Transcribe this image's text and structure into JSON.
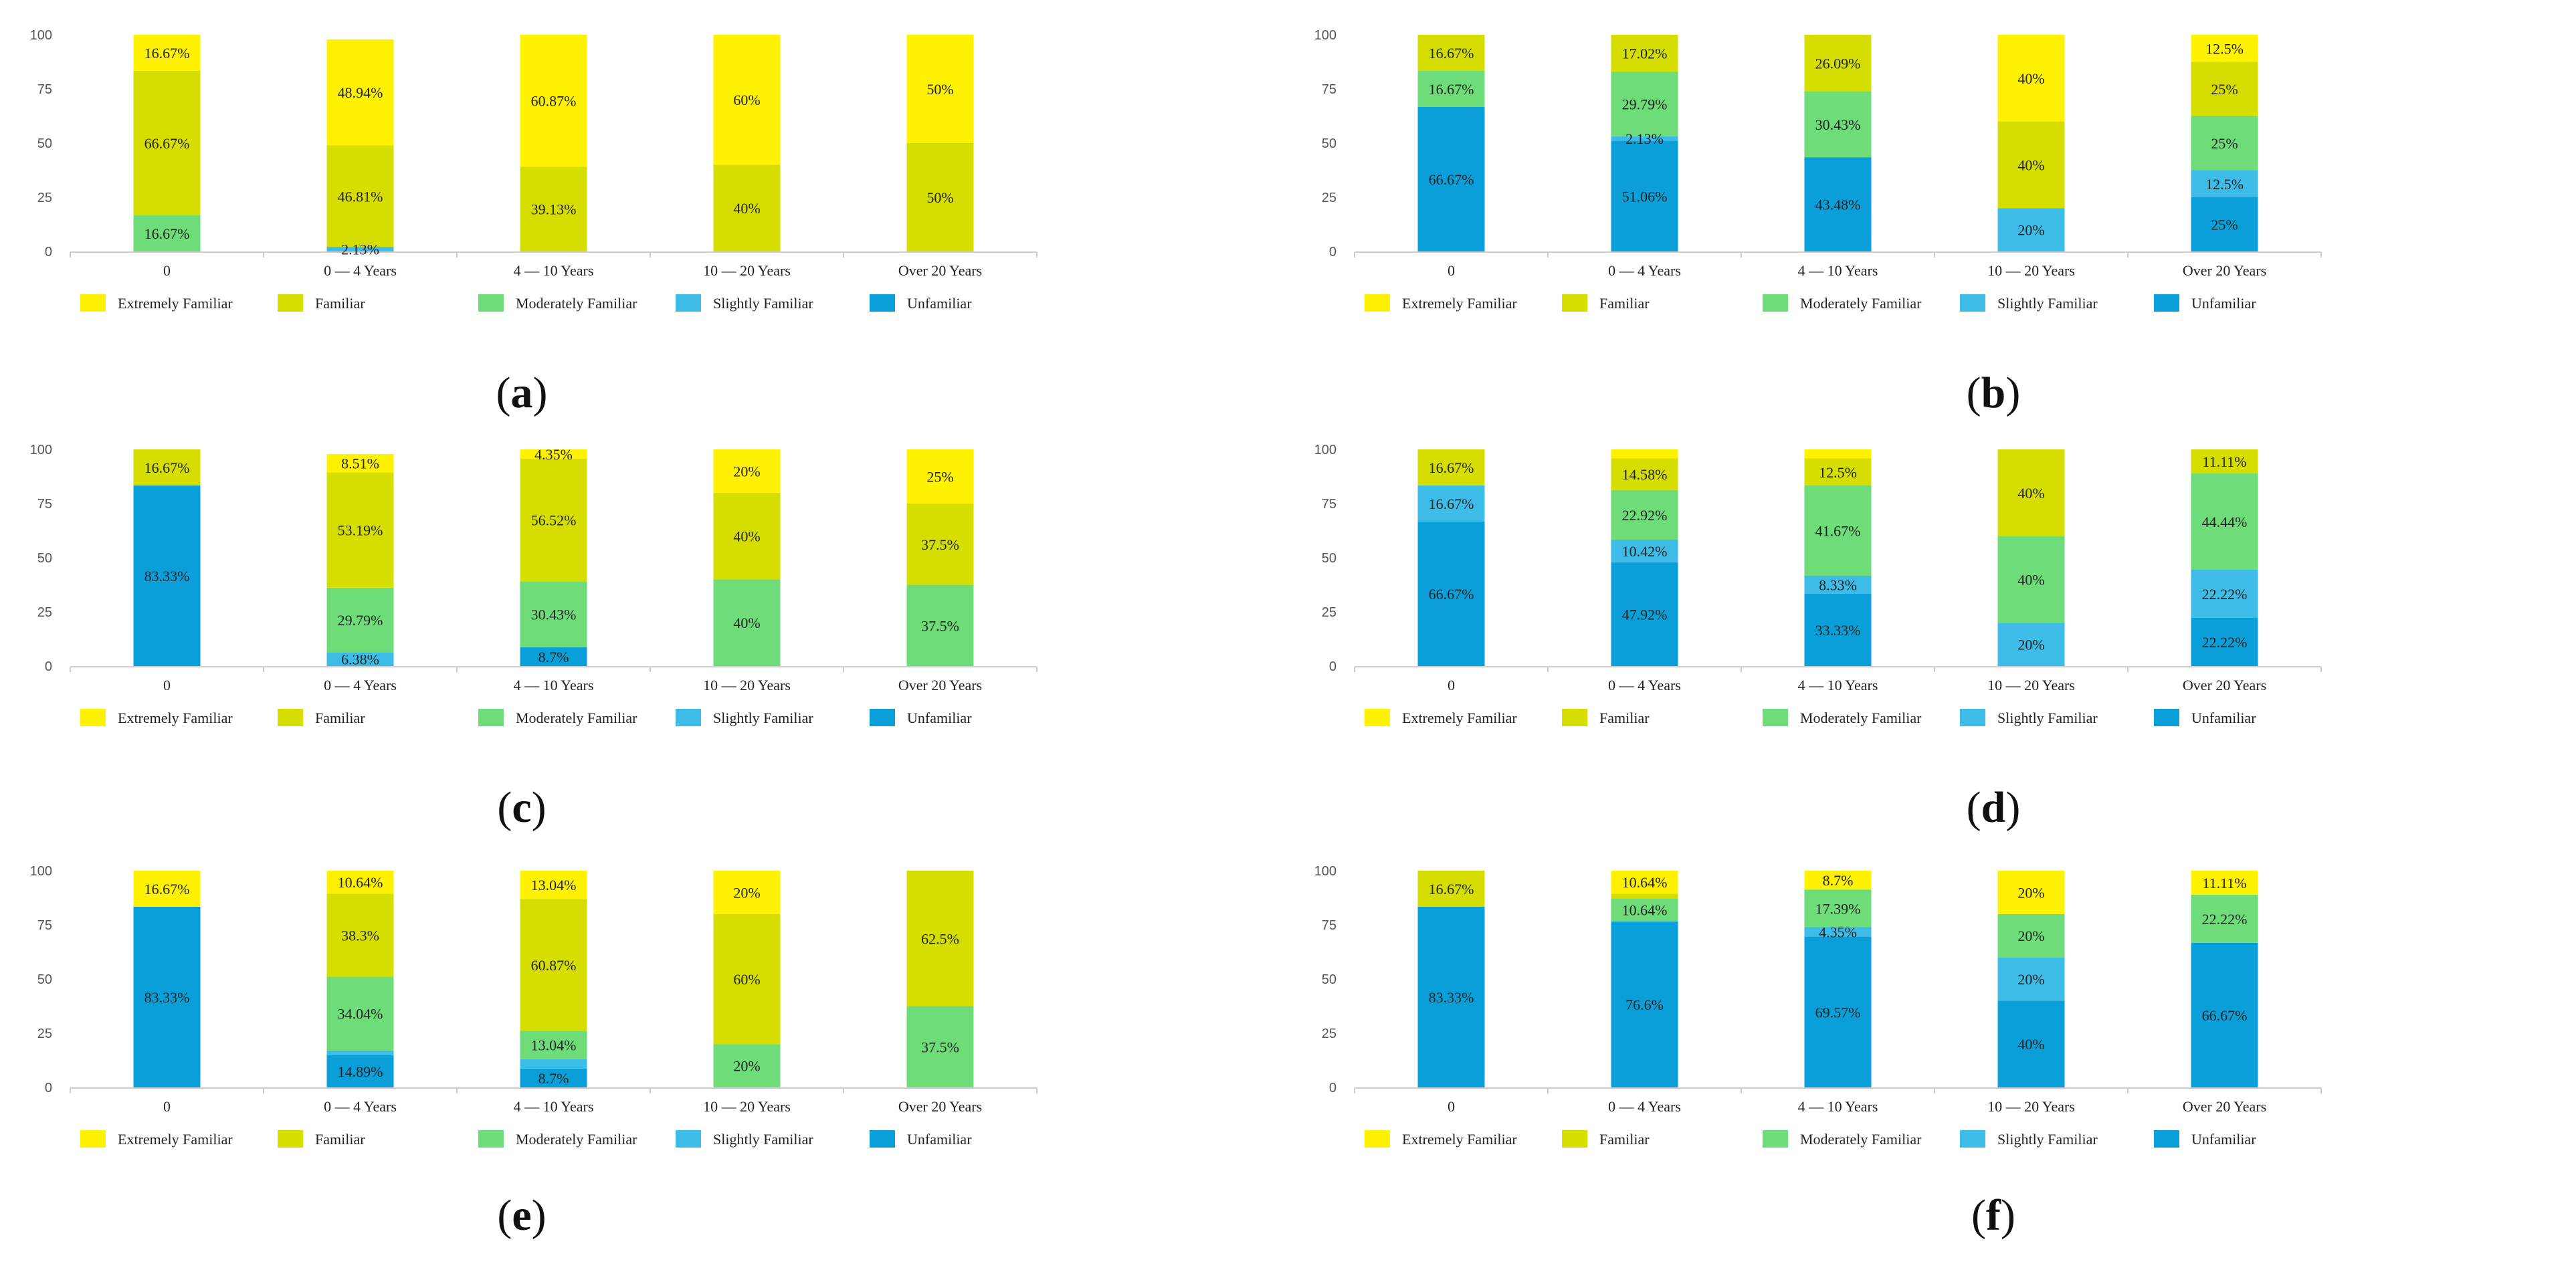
{
  "figure": {
    "legend": [
      "Extremely Familiar",
      "Familiar",
      "Moderately Familiar",
      "Slightly Familiar",
      "Unfamiliar"
    ],
    "colors": {
      "Extremely Familiar": "#FFF200",
      "Familiar": "#D6DE00",
      "Moderately Familiar": "#6EDC78",
      "Slightly Familiar": "#3DBCE8",
      "Unfamiliar": "#0A9FD8"
    }
  },
  "chart_data": [
    {
      "panel": "a",
      "type": "stacked-bar",
      "categories": [
        "0",
        "0 — 4 Years",
        "4 — 10 Years",
        "10 — 20 Years",
        "Over 20 Years"
      ],
      "yticks": [
        "0",
        "25",
        "50",
        "75",
        "100"
      ],
      "ylim": [
        0,
        100
      ],
      "legend_position": "bottom",
      "series": [
        {
          "name": "Unfamiliar",
          "values": [
            0,
            0,
            0,
            0,
            0
          ]
        },
        {
          "name": "Slightly Familiar",
          "values": [
            0,
            2.13,
            0,
            0,
            0
          ]
        },
        {
          "name": "Moderately Familiar",
          "values": [
            16.67,
            0,
            0,
            0,
            0
          ]
        },
        {
          "name": "Familiar",
          "values": [
            66.67,
            46.81,
            39.13,
            40,
            50
          ]
        },
        {
          "name": "Extremely Familiar",
          "values": [
            16.67,
            48.94,
            60.87,
            60,
            50
          ]
        }
      ],
      "labels": [
        {
          "series": "Moderately Familiar",
          "cat": 0,
          "text": "16.67%"
        },
        {
          "series": "Familiar",
          "cat": 0,
          "text": "66.67%"
        },
        {
          "series": "Extremely Familiar",
          "cat": 0,
          "text": "16.67%"
        },
        {
          "series": "Slightly Familiar",
          "cat": 1,
          "text": "2.13%"
        },
        {
          "series": "Familiar",
          "cat": 1,
          "text": "46.81%"
        },
        {
          "series": "Extremely Familiar",
          "cat": 1,
          "text": "48.94%"
        },
        {
          "series": "Familiar",
          "cat": 2,
          "text": "39.13%"
        },
        {
          "series": "Extremely Familiar",
          "cat": 2,
          "text": "60.87%"
        },
        {
          "series": "Familiar",
          "cat": 3,
          "text": "40%"
        },
        {
          "series": "Extremely Familiar",
          "cat": 3,
          "text": "60%"
        },
        {
          "series": "Familiar",
          "cat": 4,
          "text": "50%"
        },
        {
          "series": "Extremely Familiar",
          "cat": 4,
          "text": "50%"
        }
      ]
    },
    {
      "panel": "b",
      "type": "stacked-bar",
      "categories": [
        "0",
        "0 — 4 Years",
        "4 — 10 Years",
        "10 — 20 Years",
        "Over 20 Years"
      ],
      "yticks": [
        "0",
        "25",
        "50",
        "75",
        "100"
      ],
      "ylim": [
        0,
        100
      ],
      "legend_position": "bottom",
      "series": [
        {
          "name": "Unfamiliar",
          "values": [
            66.67,
            51.06,
            43.48,
            0,
            25
          ]
        },
        {
          "name": "Slightly Familiar",
          "values": [
            0,
            2.13,
            0,
            20,
            12.5
          ]
        },
        {
          "name": "Moderately Familiar",
          "values": [
            16.67,
            29.79,
            30.43,
            0,
            25
          ]
        },
        {
          "name": "Familiar",
          "values": [
            16.67,
            17.02,
            26.09,
            40,
            25
          ]
        },
        {
          "name": "Extremely Familiar",
          "values": [
            0,
            0,
            0,
            40,
            12.5
          ]
        }
      ],
      "labels": [
        {
          "series": "Unfamiliar",
          "cat": 0,
          "text": "66.67%"
        },
        {
          "series": "Moderately Familiar",
          "cat": 0,
          "text": "16.67%"
        },
        {
          "series": "Familiar",
          "cat": 0,
          "text": "16.67%"
        },
        {
          "series": "Unfamiliar",
          "cat": 1,
          "text": "51.06%"
        },
        {
          "series": "Slightly Familiar",
          "cat": 1,
          "text": "2.13%"
        },
        {
          "series": "Moderately Familiar",
          "cat": 1,
          "text": "29.79%"
        },
        {
          "series": "Familiar",
          "cat": 1,
          "text": "17.02%"
        },
        {
          "series": "Unfamiliar",
          "cat": 2,
          "text": "43.48%"
        },
        {
          "series": "Moderately Familiar",
          "cat": 2,
          "text": "30.43%"
        },
        {
          "series": "Familiar",
          "cat": 2,
          "text": "26.09%"
        },
        {
          "series": "Slightly Familiar",
          "cat": 3,
          "text": "20%"
        },
        {
          "series": "Familiar",
          "cat": 3,
          "text": "40%"
        },
        {
          "series": "Extremely Familiar",
          "cat": 3,
          "text": "40%"
        },
        {
          "series": "Unfamiliar",
          "cat": 4,
          "text": "25%"
        },
        {
          "series": "Slightly Familiar",
          "cat": 4,
          "text": "12.5%"
        },
        {
          "series": "Moderately Familiar",
          "cat": 4,
          "text": "25%"
        },
        {
          "series": "Familiar",
          "cat": 4,
          "text": "25%"
        },
        {
          "series": "Extremely Familiar",
          "cat": 4,
          "text": "12.5%"
        }
      ]
    },
    {
      "panel": "c",
      "type": "stacked-bar",
      "categories": [
        "0",
        "0 — 4 Years",
        "4 — 10 Years",
        "10 — 20 Years",
        "Over 20 Years"
      ],
      "yticks": [
        "0",
        "25",
        "50",
        "75",
        "100"
      ],
      "ylim": [
        0,
        100
      ],
      "legend_position": "bottom",
      "series": [
        {
          "name": "Unfamiliar",
          "values": [
            83.33,
            0,
            8.7,
            0,
            0
          ]
        },
        {
          "name": "Slightly Familiar",
          "values": [
            0,
            6.38,
            0,
            0,
            0
          ]
        },
        {
          "name": "Moderately Familiar",
          "values": [
            0,
            29.79,
            30.43,
            40,
            37.5
          ]
        },
        {
          "name": "Familiar",
          "values": [
            16.67,
            53.19,
            56.52,
            40,
            37.5
          ]
        },
        {
          "name": "Extremely Familiar",
          "values": [
            0,
            8.51,
            4.35,
            20,
            25
          ]
        }
      ],
      "labels": [
        {
          "series": "Unfamiliar",
          "cat": 0,
          "text": "83.33%"
        },
        {
          "series": "Familiar",
          "cat": 0,
          "text": "16.67%"
        },
        {
          "series": "Slightly Familiar",
          "cat": 1,
          "text": "6.38%"
        },
        {
          "series": "Moderately Familiar",
          "cat": 1,
          "text": "29.79%"
        },
        {
          "series": "Familiar",
          "cat": 1,
          "text": "53.19%"
        },
        {
          "series": "Extremely Familiar",
          "cat": 1,
          "text": "8.51%"
        },
        {
          "series": "Unfamiliar",
          "cat": 2,
          "text": "8.7%"
        },
        {
          "series": "Moderately Familiar",
          "cat": 2,
          "text": "30.43%"
        },
        {
          "series": "Familiar",
          "cat": 2,
          "text": "56.52%"
        },
        {
          "series": "Extremely Familiar",
          "cat": 2,
          "text": "4.35%"
        },
        {
          "series": "Moderately Familiar",
          "cat": 3,
          "text": "40%"
        },
        {
          "series": "Familiar",
          "cat": 3,
          "text": "40%"
        },
        {
          "series": "Extremely Familiar",
          "cat": 3,
          "text": "20%"
        },
        {
          "series": "Moderately Familiar",
          "cat": 4,
          "text": "37.5%"
        },
        {
          "series": "Familiar",
          "cat": 4,
          "text": "37.5%"
        },
        {
          "series": "Extremely Familiar",
          "cat": 4,
          "text": "25%"
        }
      ]
    },
    {
      "panel": "d",
      "type": "stacked-bar",
      "categories": [
        "0",
        "0 — 4 Years",
        "4 — 10 Years",
        "10 — 20 Years",
        "Over 20 Years"
      ],
      "yticks": [
        "0",
        "25",
        "50",
        "75",
        "100"
      ],
      "ylim": [
        0,
        100
      ],
      "legend_position": "bottom",
      "series": [
        {
          "name": "Unfamiliar",
          "values": [
            66.67,
            47.92,
            33.33,
            0,
            22.22
          ]
        },
        {
          "name": "Slightly Familiar",
          "values": [
            16.67,
            10.42,
            8.33,
            20,
            22.22
          ]
        },
        {
          "name": "Moderately Familiar",
          "values": [
            0,
            22.92,
            41.67,
            40,
            44.44
          ]
        },
        {
          "name": "Familiar",
          "values": [
            16.67,
            14.58,
            12.5,
            40,
            11.11
          ]
        },
        {
          "name": "Extremely Familiar",
          "values": [
            0,
            4.16,
            4.17,
            0,
            0
          ]
        }
      ],
      "labels": [
        {
          "series": "Unfamiliar",
          "cat": 0,
          "text": "66.67%"
        },
        {
          "series": "Slightly Familiar",
          "cat": 0,
          "text": "16.67%"
        },
        {
          "series": "Familiar",
          "cat": 0,
          "text": "16.67%"
        },
        {
          "series": "Unfamiliar",
          "cat": 1,
          "text": "47.92%"
        },
        {
          "series": "Slightly Familiar",
          "cat": 1,
          "text": "10.42%"
        },
        {
          "series": "Moderately Familiar",
          "cat": 1,
          "text": "22.92%"
        },
        {
          "series": "Familiar",
          "cat": 1,
          "text": "14.58%"
        },
        {
          "series": "Unfamiliar",
          "cat": 2,
          "text": "33.33%"
        },
        {
          "series": "Slightly Familiar",
          "cat": 2,
          "text": "8.33%"
        },
        {
          "series": "Moderately Familiar",
          "cat": 2,
          "text": "41.67%"
        },
        {
          "series": "Familiar",
          "cat": 2,
          "text": "12.5%"
        },
        {
          "series": "Slightly Familiar",
          "cat": 3,
          "text": "20%"
        },
        {
          "series": "Moderately Familiar",
          "cat": 3,
          "text": "40%"
        },
        {
          "series": "Familiar",
          "cat": 3,
          "text": "40%"
        },
        {
          "series": "Unfamiliar",
          "cat": 4,
          "text": "22.22%"
        },
        {
          "series": "Slightly Familiar",
          "cat": 4,
          "text": "22.22%"
        },
        {
          "series": "Moderately Familiar",
          "cat": 4,
          "text": "44.44%"
        },
        {
          "series": "Familiar",
          "cat": 4,
          "text": "11.11%"
        }
      ]
    },
    {
      "panel": "e",
      "type": "stacked-bar",
      "categories": [
        "0",
        "0 — 4 Years",
        "4 — 10 Years",
        "10 — 20 Years",
        "Over 20 Years"
      ],
      "yticks": [
        "0",
        "25",
        "50",
        "75",
        "100"
      ],
      "ylim": [
        0,
        100
      ],
      "legend_position": "bottom",
      "series": [
        {
          "name": "Unfamiliar",
          "values": [
            83.33,
            14.89,
            8.7,
            0,
            0
          ]
        },
        {
          "name": "Slightly Familiar",
          "values": [
            0,
            2.13,
            4.35,
            0,
            0
          ]
        },
        {
          "name": "Moderately Familiar",
          "values": [
            0,
            34.04,
            13.04,
            20,
            37.5
          ]
        },
        {
          "name": "Familiar",
          "values": [
            0,
            38.3,
            60.87,
            60,
            62.5
          ]
        },
        {
          "name": "Extremely Familiar",
          "values": [
            16.67,
            10.64,
            13.04,
            20,
            0
          ]
        }
      ],
      "labels": [
        {
          "series": "Unfamiliar",
          "cat": 0,
          "text": "83.33%"
        },
        {
          "series": "Extremely Familiar",
          "cat": 0,
          "text": "16.67%"
        },
        {
          "series": "Unfamiliar",
          "cat": 1,
          "text": "14.89%"
        },
        {
          "series": "Moderately Familiar",
          "cat": 1,
          "text": "34.04%"
        },
        {
          "series": "Familiar",
          "cat": 1,
          "text": "38.3%"
        },
        {
          "series": "Extremely Familiar",
          "cat": 1,
          "text": "10.64%"
        },
        {
          "series": "Unfamiliar",
          "cat": 2,
          "text": "8.7%"
        },
        {
          "series": "Moderately Familiar",
          "cat": 2,
          "text": "13.04%"
        },
        {
          "series": "Familiar",
          "cat": 2,
          "text": "60.87%"
        },
        {
          "series": "Extremely Familiar",
          "cat": 2,
          "text": "13.04%"
        },
        {
          "series": "Moderately Familiar",
          "cat": 3,
          "text": "20%"
        },
        {
          "series": "Familiar",
          "cat": 3,
          "text": "60%"
        },
        {
          "series": "Extremely Familiar",
          "cat": 3,
          "text": "20%"
        },
        {
          "series": "Moderately Familiar",
          "cat": 4,
          "text": "37.5%"
        },
        {
          "series": "Familiar",
          "cat": 4,
          "text": "62.5%"
        }
      ]
    },
    {
      "panel": "f",
      "type": "stacked-bar",
      "categories": [
        "0",
        "0 — 4 Years",
        "4 — 10 Years",
        "10 — 20 Years",
        "Over 20 Years"
      ],
      "yticks": [
        "0",
        "25",
        "50",
        "75",
        "100"
      ],
      "ylim": [
        0,
        100
      ],
      "legend_position": "bottom",
      "series": [
        {
          "name": "Unfamiliar",
          "values": [
            83.33,
            76.6,
            69.57,
            40,
            66.67
          ]
        },
        {
          "name": "Slightly Familiar",
          "values": [
            0,
            0,
            4.35,
            20,
            0
          ]
        },
        {
          "name": "Moderately Familiar",
          "values": [
            0,
            10.64,
            17.39,
            20,
            22.22
          ]
        },
        {
          "name": "Familiar",
          "values": [
            16.67,
            2.12,
            0,
            0,
            0
          ]
        },
        {
          "name": "Extremely Familiar",
          "values": [
            0,
            10.64,
            8.7,
            20,
            11.11
          ]
        }
      ],
      "labels": [
        {
          "series": "Unfamiliar",
          "cat": 0,
          "text": "83.33%"
        },
        {
          "series": "Familiar",
          "cat": 0,
          "text": "16.67%"
        },
        {
          "series": "Unfamiliar",
          "cat": 1,
          "text": "76.6%"
        },
        {
          "series": "Moderately Familiar",
          "cat": 1,
          "text": "10.64%"
        },
        {
          "series": "Extremely Familiar",
          "cat": 1,
          "text": "10.64%"
        },
        {
          "series": "Unfamiliar",
          "cat": 2,
          "text": "69.57%"
        },
        {
          "series": "Slightly Familiar",
          "cat": 2,
          "text": "4.35%"
        },
        {
          "series": "Moderately Familiar",
          "cat": 2,
          "text": "17.39%"
        },
        {
          "series": "Extremely Familiar",
          "cat": 2,
          "text": "8.7%"
        },
        {
          "series": "Unfamiliar",
          "cat": 3,
          "text": "40%"
        },
        {
          "series": "Slightly Familiar",
          "cat": 3,
          "text": "20%"
        },
        {
          "series": "Moderately Familiar",
          "cat": 3,
          "text": "20%"
        },
        {
          "series": "Extremely Familiar",
          "cat": 3,
          "text": "20%"
        },
        {
          "series": "Unfamiliar",
          "cat": 4,
          "text": "66.67%"
        },
        {
          "series": "Moderately Familiar",
          "cat": 4,
          "text": "22.22%"
        },
        {
          "series": "Extremely Familiar",
          "cat": 4,
          "text": "11.11%"
        }
      ]
    }
  ]
}
